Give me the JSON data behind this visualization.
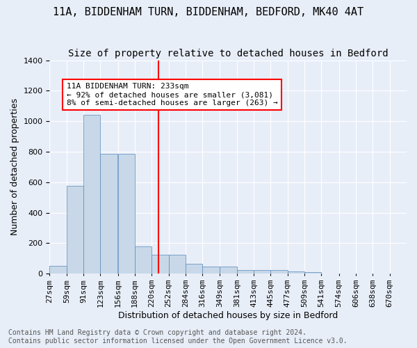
{
  "title": "11A, BIDDENHAM TURN, BIDDENHAM, BEDFORD, MK40 4AT",
  "subtitle": "Size of property relative to detached houses in Bedford",
  "xlabel": "Distribution of detached houses by size in Bedford",
  "ylabel": "Number of detached properties",
  "bar_color": "#c8d8e8",
  "bar_edge_color": "#5588bb",
  "background_color": "#e8eef8",
  "grid_color": "white",
  "bin_labels": [
    "27sqm",
    "59sqm",
    "91sqm",
    "123sqm",
    "156sqm",
    "188sqm",
    "220sqm",
    "252sqm",
    "284sqm",
    "316sqm",
    "349sqm",
    "381sqm",
    "413sqm",
    "445sqm",
    "477sqm",
    "509sqm",
    "541sqm",
    "574sqm",
    "606sqm",
    "638sqm",
    "670sqm"
  ],
  "bar_heights": [
    50,
    575,
    1040,
    785,
    785,
    180,
    125,
    125,
    65,
    47,
    47,
    25,
    22,
    22,
    15,
    10,
    0,
    0,
    0,
    0,
    0
  ],
  "red_line_x": 233,
  "bin_edges": [
    27,
    59,
    91,
    123,
    156,
    188,
    220,
    252,
    284,
    316,
    349,
    381,
    413,
    445,
    477,
    509,
    541,
    574,
    606,
    638,
    670
  ],
  "ylim": [
    0,
    1400
  ],
  "yticks": [
    0,
    200,
    400,
    600,
    800,
    1000,
    1200,
    1400
  ],
  "annotation_text": "11A BIDDENHAM TURN: 233sqm\n← 92% of detached houses are smaller (3,081)\n8% of semi-detached houses are larger (263) →",
  "footnote": "Contains HM Land Registry data © Crown copyright and database right 2024.\nContains public sector information licensed under the Open Government Licence v3.0.",
  "title_fontsize": 11,
  "subtitle_fontsize": 10,
  "axis_label_fontsize": 9,
  "tick_fontsize": 8,
  "annotation_fontsize": 8,
  "footnote_fontsize": 7
}
